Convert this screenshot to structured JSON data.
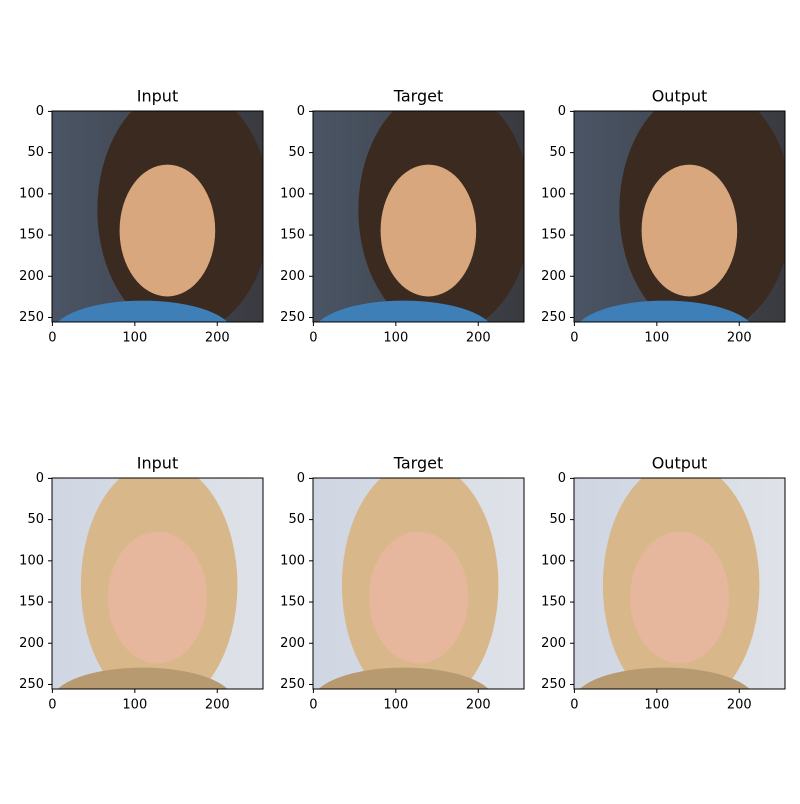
{
  "chart_data": [
    {
      "type": "image",
      "title": "Input",
      "xlim": [
        -0.5,
        255.5
      ],
      "ylim": [
        255.5,
        -0.5
      ],
      "xticks": [
        0,
        100,
        200
      ],
      "yticks": [
        0,
        50,
        100,
        150,
        200,
        250
      ]
    },
    {
      "type": "image",
      "title": "Target",
      "xlim": [
        -0.5,
        255.5
      ],
      "ylim": [
        255.5,
        -0.5
      ],
      "xticks": [
        0,
        100,
        200
      ],
      "yticks": [
        0,
        50,
        100,
        150,
        200,
        250
      ]
    },
    {
      "type": "image",
      "title": "Output",
      "xlim": [
        -0.5,
        255.5
      ],
      "ylim": [
        255.5,
        -0.5
      ],
      "xticks": [
        0,
        100,
        200
      ],
      "yticks": [
        0,
        50,
        100,
        150,
        200,
        250
      ]
    },
    {
      "type": "image",
      "title": "Input",
      "xlim": [
        -0.5,
        255.5
      ],
      "ylim": [
        255.5,
        -0.5
      ],
      "xticks": [
        0,
        100,
        200
      ],
      "yticks": [
        0,
        50,
        100,
        150,
        200,
        250
      ]
    },
    {
      "type": "image",
      "title": "Target",
      "xlim": [
        -0.5,
        255.5
      ],
      "ylim": [
        255.5,
        -0.5
      ],
      "xticks": [
        0,
        100,
        200
      ],
      "yticks": [
        0,
        50,
        100,
        150,
        200,
        250
      ]
    },
    {
      "type": "image",
      "title": "Output",
      "xlim": [
        -0.5,
        255.5
      ],
      "ylim": [
        255.5,
        -0.5
      ],
      "xticks": [
        0,
        100,
        200
      ],
      "yticks": [
        0,
        50,
        100,
        150,
        200,
        250
      ]
    }
  ]
}
